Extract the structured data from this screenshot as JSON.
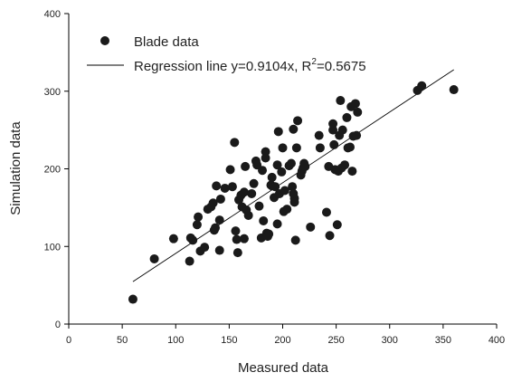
{
  "chart_data": {
    "type": "scatter",
    "xlabel": "Measured data",
    "ylabel": "Simulation data",
    "xlim": [
      0,
      400
    ],
    "ylim": [
      0,
      400
    ],
    "xticks": [
      0,
      50,
      100,
      150,
      200,
      250,
      300,
      350,
      400
    ],
    "yticks": [
      0,
      100,
      200,
      300,
      400
    ],
    "grid": false,
    "legend_position": "top-left",
    "legend": {
      "points_label": "Blade data",
      "line_label_prefix": "Regression line y=0.9104x, R",
      "line_label_sup": "2",
      "line_label_suffix": "=0.5675"
    },
    "regression": {
      "slope": 0.9104,
      "r2": 0.5675,
      "x_range": [
        60,
        360
      ]
    },
    "series": [
      {
        "name": "Blade data",
        "points": [
          [
            60,
            32
          ],
          [
            80,
            84
          ],
          [
            98,
            110
          ],
          [
            113,
            81
          ],
          [
            114,
            111
          ],
          [
            116,
            108
          ],
          [
            120,
            128
          ],
          [
            121,
            138
          ],
          [
            123,
            94
          ],
          [
            127,
            99
          ],
          [
            130,
            148
          ],
          [
            133,
            151
          ],
          [
            135,
            156
          ],
          [
            136,
            121
          ],
          [
            137,
            124
          ],
          [
            138,
            178
          ],
          [
            141,
            134
          ],
          [
            141,
            95
          ],
          [
            142,
            161
          ],
          [
            146,
            175
          ],
          [
            151,
            199
          ],
          [
            153,
            177
          ],
          [
            155,
            234
          ],
          [
            156,
            120
          ],
          [
            157,
            109
          ],
          [
            158,
            92
          ],
          [
            159,
            160
          ],
          [
            161,
            166
          ],
          [
            162,
            151
          ],
          [
            164,
            170
          ],
          [
            164,
            110
          ],
          [
            165,
            203
          ],
          [
            166,
            147
          ],
          [
            168,
            140
          ],
          [
            171,
            168
          ],
          [
            173,
            181
          ],
          [
            175,
            210
          ],
          [
            176,
            205
          ],
          [
            178,
            152
          ],
          [
            180,
            111
          ],
          [
            181,
            198
          ],
          [
            182,
            133
          ],
          [
            184,
            214
          ],
          [
            184,
            222
          ],
          [
            185,
            117
          ],
          [
            186,
            113
          ],
          [
            187,
            116
          ],
          [
            189,
            179
          ],
          [
            190,
            178
          ],
          [
            190,
            189
          ],
          [
            192,
            163
          ],
          [
            193,
            177
          ],
          [
            195,
            129
          ],
          [
            195,
            205
          ],
          [
            196,
            248
          ],
          [
            197,
            168
          ],
          [
            199,
            196
          ],
          [
            200,
            227
          ],
          [
            201,
            145
          ],
          [
            202,
            172
          ],
          [
            204,
            148
          ],
          [
            206,
            204
          ],
          [
            208,
            207
          ],
          [
            209,
            177
          ],
          [
            210,
            251
          ],
          [
            210,
            168
          ],
          [
            211,
            162
          ],
          [
            211,
            157
          ],
          [
            212,
            108
          ],
          [
            213,
            227
          ],
          [
            214,
            262
          ],
          [
            217,
            192
          ],
          [
            218,
            197
          ],
          [
            219,
            201
          ],
          [
            220,
            207
          ],
          [
            221,
            203
          ],
          [
            226,
            125
          ],
          [
            234,
            243
          ],
          [
            235,
            227
          ],
          [
            241,
            144
          ],
          [
            243,
            203
          ],
          [
            244,
            114
          ],
          [
            247,
            258
          ],
          [
            247,
            250
          ],
          [
            248,
            231
          ],
          [
            249,
            199
          ],
          [
            251,
            128
          ],
          [
            252,
            197
          ],
          [
            253,
            243
          ],
          [
            254,
            288
          ],
          [
            255,
            201
          ],
          [
            256,
            250
          ],
          [
            258,
            205
          ],
          [
            260,
            266
          ],
          [
            261,
            227
          ],
          [
            263,
            228
          ],
          [
            264,
            280
          ],
          [
            265,
            197
          ],
          [
            266,
            242
          ],
          [
            268,
            284
          ],
          [
            269,
            243
          ],
          [
            270,
            273
          ],
          [
            326,
            301
          ],
          [
            330,
            307
          ],
          [
            360,
            302
          ]
        ]
      }
    ]
  }
}
